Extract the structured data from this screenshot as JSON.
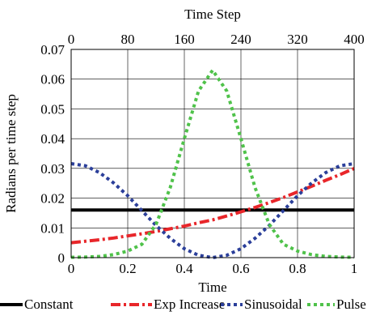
{
  "chart_data": {
    "type": "line",
    "xlabel": "Time",
    "x2label": "Time Step",
    "ylabel": "Radians per time step",
    "xlim": [
      0,
      1
    ],
    "x2lim": [
      0,
      400
    ],
    "ylim": [
      0,
      0.07
    ],
    "xticks": [
      0,
      0.2,
      0.4,
      0.6,
      0.8,
      1
    ],
    "xtick_labels": [
      "0",
      "0.2",
      "0.4",
      "0.6",
      "0.8",
      "1"
    ],
    "x2ticks": [
      0,
      80,
      160,
      240,
      320,
      400
    ],
    "x2tick_labels": [
      "0",
      "80",
      "160",
      "240",
      "320",
      "400"
    ],
    "yticks": [
      0,
      0.01,
      0.02,
      0.03,
      0.04,
      0.05,
      0.06,
      0.07
    ],
    "ytick_labels": [
      "0",
      "0.01",
      "0.02",
      "0.03",
      "0.04",
      "0.05",
      "0.06",
      "0.07"
    ],
    "grid": true,
    "legend_position": "bottom",
    "x": [
      0,
      0.05,
      0.1,
      0.15,
      0.2,
      0.25,
      0.3,
      0.35,
      0.4,
      0.45,
      0.5,
      0.55,
      0.6,
      0.65,
      0.7,
      0.75,
      0.8,
      0.85,
      0.9,
      0.95,
      1
    ],
    "series": [
      {
        "name": "Constant",
        "color": "#000000",
        "style": "solid",
        "values": [
          0.016,
          0.016,
          0.016,
          0.016,
          0.016,
          0.016,
          0.016,
          0.016,
          0.016,
          0.016,
          0.016,
          0.016,
          0.016,
          0.016,
          0.016,
          0.016,
          0.016,
          0.016,
          0.016,
          0.016,
          0.016
        ]
      },
      {
        "name": "Exp Increase",
        "color": "#e8262a",
        "style": "dashdot",
        "values": [
          0.005,
          0.0055,
          0.006,
          0.0066,
          0.0073,
          0.008,
          0.0088,
          0.0097,
          0.0106,
          0.0117,
          0.0127,
          0.014,
          0.0154,
          0.0169,
          0.0185,
          0.0202,
          0.0221,
          0.024,
          0.026,
          0.0279,
          0.03
        ]
      },
      {
        "name": "Sinusoidal",
        "color": "#2b3f9a",
        "style": "dotted",
        "values": [
          0.0316,
          0.0309,
          0.0286,
          0.0251,
          0.0208,
          0.0158,
          0.0108,
          0.0065,
          0.003,
          0.0008,
          0.0,
          0.0008,
          0.003,
          0.0065,
          0.0108,
          0.0158,
          0.0208,
          0.0251,
          0.0286,
          0.0309,
          0.0316
        ]
      },
      {
        "name": "Pulse",
        "color": "#4fc24a",
        "style": "dotted",
        "values": [
          0.0001,
          0.0002,
          0.0004,
          0.001,
          0.0022,
          0.0045,
          0.0112,
          0.0235,
          0.04,
          0.056,
          0.063,
          0.056,
          0.04,
          0.0235,
          0.0112,
          0.0045,
          0.0022,
          0.001,
          0.0004,
          0.0002,
          0.0001
        ]
      }
    ]
  }
}
